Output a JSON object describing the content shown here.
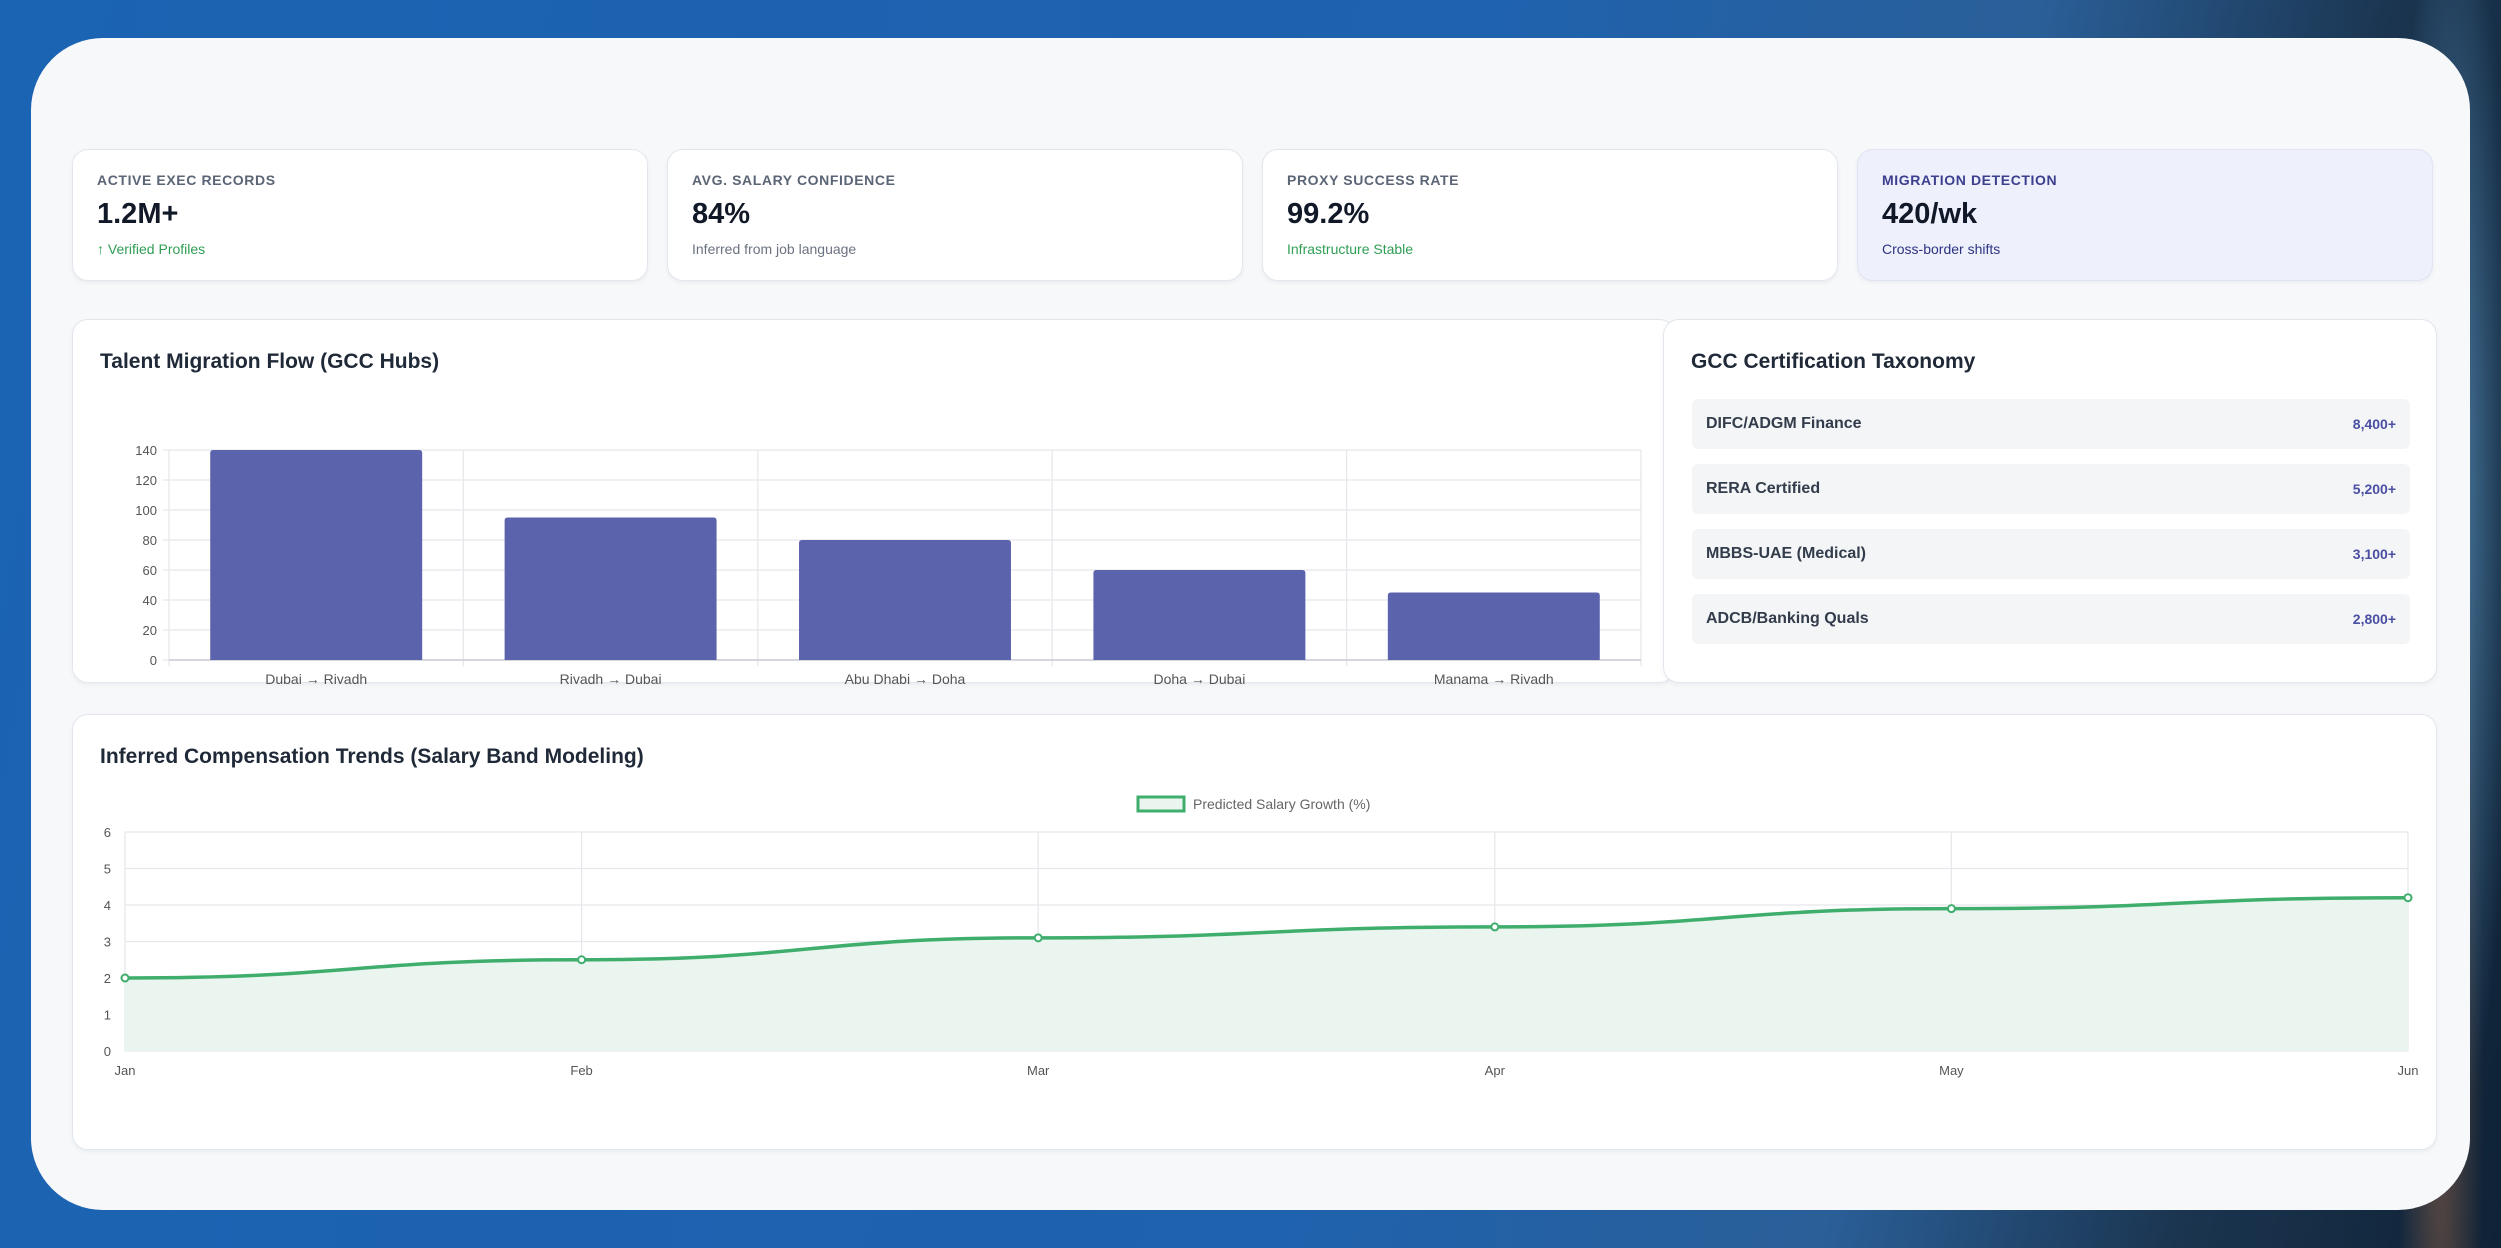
{
  "kpis": [
    {
      "label": "ACTIVE EXEC RECORDS",
      "value": "1.2M+",
      "sub": "↑ Verified Profiles"
    },
    {
      "label": "AVG. SALARY CONFIDENCE",
      "value": "84%",
      "sub": "Inferred from job language"
    },
    {
      "label": "PROXY SUCCESS RATE",
      "value": "99.2%",
      "sub": "Infrastructure Stable"
    },
    {
      "label": "MIGRATION DETECTION",
      "value": "420/wk",
      "sub": "Cross-border shifts"
    }
  ],
  "migration_card": {
    "title": "Talent Migration Flow (GCC Hubs)"
  },
  "taxonomy": {
    "title": "GCC Certification Taxonomy",
    "items": [
      {
        "name": "DIFC/ADGM Finance",
        "value": "8,400+"
      },
      {
        "name": "RERA Certified",
        "value": "5,200+"
      },
      {
        "name": "MBBS-UAE (Medical)",
        "value": "3,100+"
      },
      {
        "name": "ADCB/Banking Quals",
        "value": "2,800+"
      }
    ]
  },
  "compensation_card": {
    "title": "Inferred Compensation Trends (Salary Band Modeling)"
  },
  "colors": {
    "bar": "#5c63ad",
    "line": "#3fae6d",
    "line_fill": "#e9f5ee",
    "grid": "#e6e8ec"
  },
  "chart_data": [
    {
      "type": "bar",
      "categories": [
        "Dubai → Riyadh",
        "Riyadh → Dubai",
        "Abu Dhabi → Doha",
        "Doha → Dubai",
        "Manama → Riyadh"
      ],
      "values": [
        140,
        95,
        80,
        60,
        45
      ],
      "ylim": [
        0,
        140
      ],
      "yticks": [
        0,
        20,
        40,
        60,
        80,
        100,
        120,
        140
      ],
      "grid": true
    },
    {
      "type": "line",
      "x": [
        "Jan",
        "Feb",
        "Mar",
        "Apr",
        "May",
        "Jun"
      ],
      "series": [
        {
          "name": "Predicted Salary Growth (%)",
          "values": [
            2.0,
            2.5,
            3.1,
            3.4,
            3.9,
            4.2
          ]
        }
      ],
      "ylim": [
        0,
        6
      ],
      "yticks": [
        0,
        1,
        2,
        3,
        4,
        5,
        6
      ],
      "grid": true,
      "legend": "top-center"
    }
  ]
}
